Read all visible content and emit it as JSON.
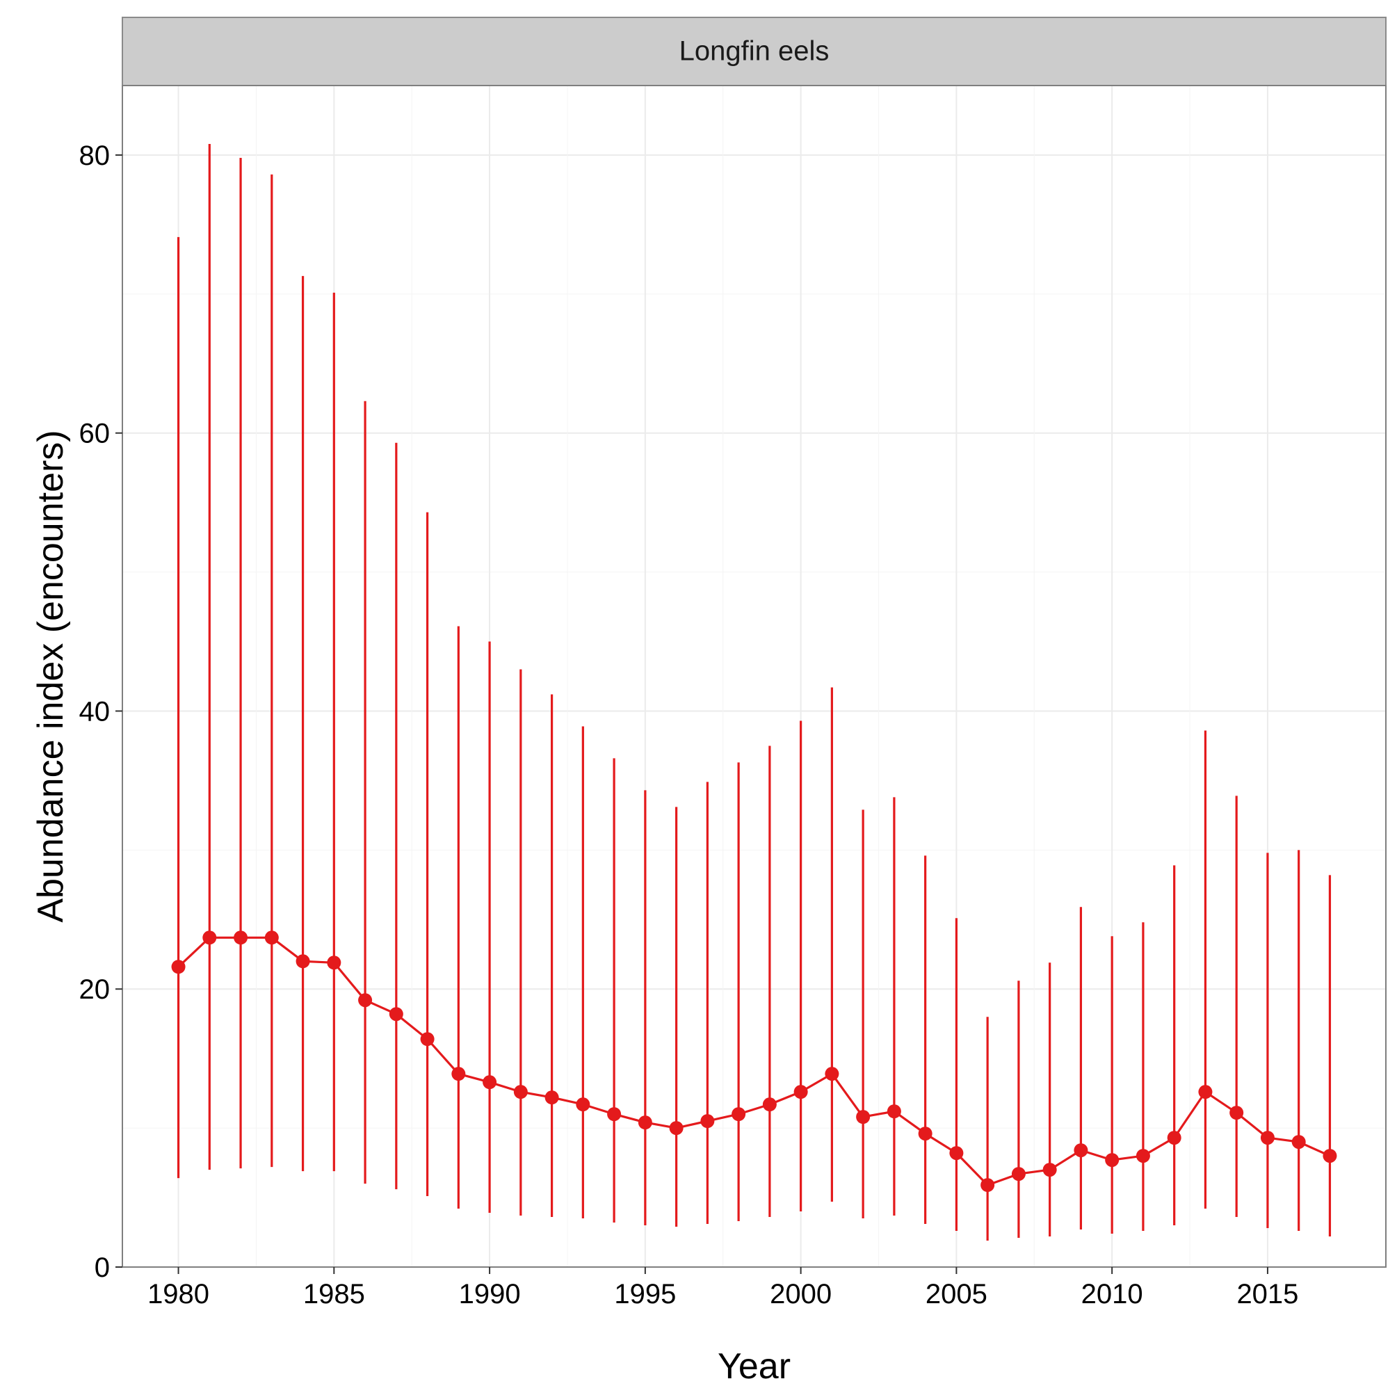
{
  "chart_data": {
    "type": "line",
    "facet_label": "Longfin eels",
    "xlabel": "Year",
    "ylabel": "Abundance index (encounters)",
    "xlim": [
      1978.2,
      2018.8
    ],
    "ylim": [
      0,
      85
    ],
    "x_ticks": [
      1980,
      1985,
      1990,
      1995,
      2000,
      2005,
      2010,
      2015
    ],
    "y_ticks": [
      0,
      20,
      40,
      60,
      80
    ],
    "x_tick_labels": [
      "1980",
      "1985",
      "1990",
      "1995",
      "2000",
      "2005",
      "2010",
      "2015"
    ],
    "y_tick_labels": [
      "0",
      "20",
      "40",
      "60",
      "80"
    ],
    "grid": true,
    "series": [
      {
        "color": "#e41a1c",
        "x": [
          1980,
          1981,
          1982,
          1983,
          1984,
          1985,
          1986,
          1987,
          1988,
          1989,
          1990,
          1991,
          1992,
          1993,
          1994,
          1995,
          1996,
          1997,
          1998,
          1999,
          2000,
          2001,
          2002,
          2003,
          2004,
          2005,
          2006,
          2007,
          2008,
          2009,
          2010,
          2011,
          2012,
          2013,
          2014,
          2015,
          2016,
          2017
        ],
        "y": [
          21.6,
          23.7,
          23.7,
          23.7,
          22.0,
          21.9,
          19.2,
          18.2,
          16.4,
          13.9,
          13.3,
          12.6,
          12.2,
          11.7,
          11.0,
          10.4,
          10.0,
          10.5,
          11.0,
          11.7,
          12.6,
          13.9,
          10.8,
          11.2,
          9.6,
          8.2,
          5.9,
          6.7,
          7.0,
          8.4,
          7.7,
          8.0,
          9.3,
          12.6,
          11.1,
          9.3,
          9.0,
          8.0
        ],
        "lower": [
          6.4,
          7.0,
          7.1,
          7.2,
          6.9,
          6.9,
          6.0,
          5.6,
          5.1,
          4.2,
          3.9,
          3.7,
          3.6,
          3.5,
          3.2,
          3.0,
          2.9,
          3.1,
          3.3,
          3.6,
          4.0,
          4.7,
          3.5,
          3.7,
          3.1,
          2.6,
          1.9,
          2.1,
          2.2,
          2.7,
          2.4,
          2.6,
          3.0,
          4.2,
          3.6,
          2.8,
          2.6,
          2.2
        ],
        "upper": [
          74.1,
          80.8,
          79.8,
          78.6,
          71.3,
          70.1,
          62.3,
          59.3,
          54.3,
          46.1,
          45.0,
          43.0,
          41.2,
          38.9,
          36.6,
          34.3,
          33.1,
          34.9,
          36.3,
          37.5,
          39.3,
          41.7,
          32.9,
          33.8,
          29.6,
          25.1,
          18.0,
          20.6,
          21.9,
          25.9,
          23.8,
          24.8,
          28.9,
          38.6,
          33.9,
          29.8,
          30.0,
          28.2
        ]
      }
    ]
  }
}
